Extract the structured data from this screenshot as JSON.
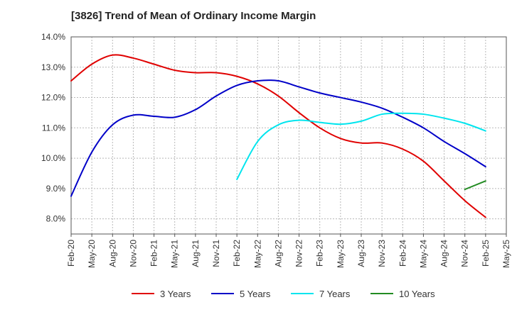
{
  "chart_data": {
    "type": "line",
    "title": "[3826]  Trend of Mean of Ordinary Income Margin",
    "xlabel": "",
    "ylabel": "",
    "ylim": [
      7.5,
      14.0
    ],
    "y_ticks": [
      8.0,
      9.0,
      10.0,
      11.0,
      12.0,
      13.0,
      14.0
    ],
    "y_tick_labels": [
      "8.0%",
      "9.0%",
      "10.0%",
      "11.0%",
      "12.0%",
      "13.0%",
      "14.0%"
    ],
    "x_tick_labels": [
      "Feb-20",
      "May-20",
      "Aug-20",
      "Nov-20",
      "Feb-21",
      "May-21",
      "Aug-21",
      "Nov-21",
      "Feb-22",
      "May-22",
      "Aug-22",
      "Nov-22",
      "Feb-23",
      "May-23",
      "Aug-23",
      "Nov-23",
      "Feb-24",
      "May-24",
      "Aug-24",
      "Nov-24",
      "Feb-25",
      "May-25"
    ],
    "grid": true,
    "legend_position": "bottom",
    "series": [
      {
        "name": "3 Years",
        "color": "#e00000",
        "x": [
          "Feb-20",
          "May-20",
          "Aug-20",
          "Nov-20",
          "Feb-21",
          "May-21",
          "Aug-21",
          "Nov-21",
          "Feb-22",
          "May-22",
          "Aug-22",
          "Nov-22",
          "Feb-23",
          "May-23",
          "Aug-23",
          "Nov-23",
          "Feb-24",
          "May-24",
          "Aug-24",
          "Nov-24",
          "Feb-25"
        ],
        "values": [
          12.55,
          13.1,
          13.4,
          13.3,
          13.1,
          12.9,
          12.82,
          12.82,
          12.7,
          12.45,
          12.05,
          11.5,
          11.0,
          10.65,
          10.5,
          10.5,
          10.3,
          9.9,
          9.25,
          8.6,
          8.05
        ]
      },
      {
        "name": "5 Years",
        "color": "#0000c8",
        "x": [
          "Feb-20",
          "May-20",
          "Aug-20",
          "Nov-20",
          "Feb-21",
          "May-21",
          "Aug-21",
          "Nov-21",
          "Feb-22",
          "May-22",
          "Aug-22",
          "Nov-22",
          "Feb-23",
          "May-23",
          "Aug-23",
          "Nov-23",
          "Feb-24",
          "May-24",
          "Aug-24",
          "Nov-24",
          "Feb-25"
        ],
        "values": [
          8.75,
          10.2,
          11.1,
          11.42,
          11.38,
          11.35,
          11.6,
          12.05,
          12.4,
          12.55,
          12.55,
          12.35,
          12.15,
          12.0,
          11.85,
          11.65,
          11.35,
          11.0,
          10.55,
          10.15,
          9.72
        ]
      },
      {
        "name": "7 Years",
        "color": "#00e5ee",
        "x": [
          "Feb-22",
          "May-22",
          "Aug-22",
          "Nov-22",
          "Feb-23",
          "May-23",
          "Aug-23",
          "Nov-23",
          "Feb-24",
          "May-24",
          "Aug-24",
          "Nov-24",
          "Feb-25"
        ],
        "values": [
          9.3,
          10.55,
          11.1,
          11.25,
          11.18,
          11.12,
          11.22,
          11.45,
          11.48,
          11.45,
          11.32,
          11.15,
          10.9
        ]
      },
      {
        "name": "10 Years",
        "color": "#228b22",
        "x": [
          "Nov-24",
          "Feb-25"
        ],
        "values": [
          8.97,
          9.25
        ]
      }
    ]
  }
}
